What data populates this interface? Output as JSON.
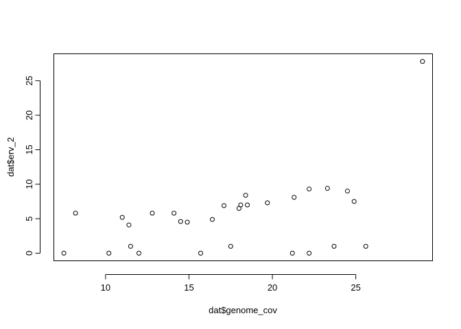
{
  "chart_data": {
    "type": "scatter",
    "xlabel": "dat$genome_cov",
    "ylabel": "dat$erv_2",
    "xlim": [
      6.9,
      29.6
    ],
    "ylim": [
      -1.1,
      28.9
    ],
    "x_ticks": [
      "10",
      "15",
      "20",
      "25"
    ],
    "y_ticks": [
      "0",
      "5",
      "10",
      "15",
      "20",
      "25"
    ],
    "grid": false,
    "points": [
      {
        "x": 7.5,
        "y": 0
      },
      {
        "x": 8.2,
        "y": 5.8
      },
      {
        "x": 10.2,
        "y": 0
      },
      {
        "x": 11.0,
        "y": 5.2
      },
      {
        "x": 11.4,
        "y": 4.1
      },
      {
        "x": 11.5,
        "y": 1.0
      },
      {
        "x": 12.0,
        "y": 0
      },
      {
        "x": 12.8,
        "y": 5.8
      },
      {
        "x": 14.1,
        "y": 5.8
      },
      {
        "x": 14.5,
        "y": 4.6
      },
      {
        "x": 14.9,
        "y": 4.5
      },
      {
        "x": 15.7,
        "y": 0
      },
      {
        "x": 16.4,
        "y": 4.9
      },
      {
        "x": 17.1,
        "y": 6.9
      },
      {
        "x": 17.5,
        "y": 1.0
      },
      {
        "x": 18.0,
        "y": 6.5
      },
      {
        "x": 18.1,
        "y": 7.0
      },
      {
        "x": 18.4,
        "y": 8.4
      },
      {
        "x": 18.5,
        "y": 7.0
      },
      {
        "x": 19.7,
        "y": 7.3
      },
      {
        "x": 21.2,
        "y": 0
      },
      {
        "x": 21.3,
        "y": 8.1
      },
      {
        "x": 22.2,
        "y": 9.3
      },
      {
        "x": 22.2,
        "y": 0
      },
      {
        "x": 23.3,
        "y": 9.4
      },
      {
        "x": 23.7,
        "y": 1.0
      },
      {
        "x": 24.5,
        "y": 9.0
      },
      {
        "x": 24.9,
        "y": 7.5
      },
      {
        "x": 25.6,
        "y": 1.0
      },
      {
        "x": 29.0,
        "y": 27.8
      }
    ]
  }
}
